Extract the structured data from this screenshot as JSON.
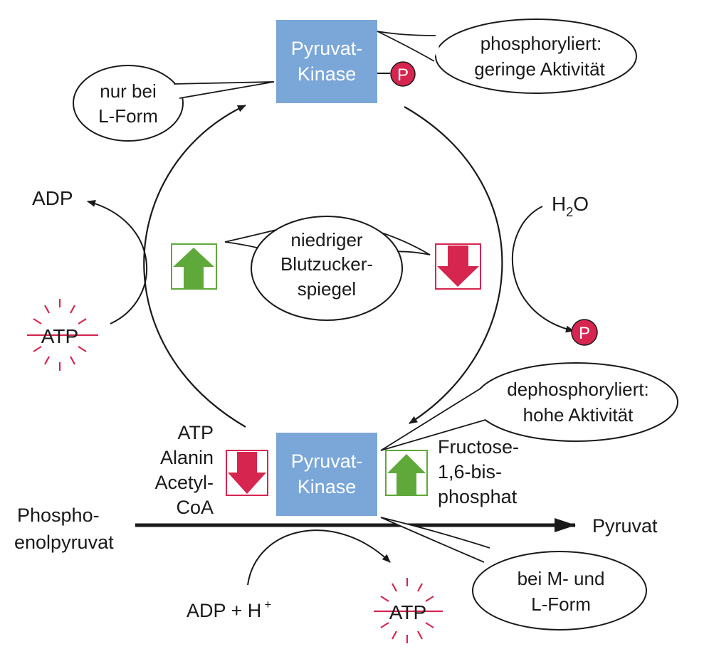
{
  "colors": {
    "enzyme_box": "#7aa6d8",
    "enzyme_text": "#ffffff",
    "phosphate": "#d6254f",
    "up_arrow": "#5fa83a",
    "down_arrow": "#d6254f",
    "line": "#1a1a1a"
  },
  "enzyme_top": {
    "line1": "Pyruvat-",
    "line2": "Kinase"
  },
  "enzyme_bottom": {
    "line1": "Pyruvat-",
    "line2": "Kinase"
  },
  "phosphate_label": "P",
  "bubble_phosphorylated": {
    "line1": "phosphoryliert:",
    "line2": "geringe Aktivität"
  },
  "bubble_l_form": {
    "line1": "nur bei",
    "line2": "L-Form"
  },
  "bubble_glucose": {
    "line1": "niedriger",
    "line2": "Blutzucker-",
    "line3": "spiegel"
  },
  "bubble_dephosphorylated": {
    "line1": "dephosphoryliert:",
    "line2": "hohe Aktivität"
  },
  "bubble_m_l_form": {
    "line1": "bei M- und",
    "line2": "L-Form"
  },
  "left_cycle": {
    "adp": "ADP",
    "atp": "ATP"
  },
  "right_cycle": {
    "water_base": "H",
    "water_sub": "2",
    "water_end": "O"
  },
  "inhibitors": [
    "ATP",
    "Alanin",
    "Acetyl-",
    "CoA"
  ],
  "activator": [
    "Fructose-",
    "1,6-bis-",
    "phosphat"
  ],
  "substrate": {
    "line1": "Phospho-",
    "line2": "enolpyruvat"
  },
  "product": "Pyruvat",
  "cofactor_in": {
    "text": "ADP + H",
    "sup": "+"
  },
  "cofactor_out": "ATP"
}
